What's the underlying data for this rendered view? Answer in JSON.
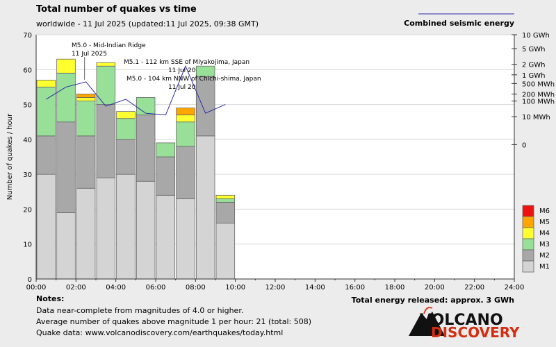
{
  "chart_data": {
    "type": "bar",
    "title": "Total number of quakes vs time",
    "subtitle": "worldwide - 11 Jul 2025 (updated:11 Jul 2025, 09:38 GMT)",
    "ylabel": "Number of quakes / hour",
    "ylim": [
      0,
      70
    ],
    "y_ticks": [
      "0",
      "10",
      "20",
      "30",
      "40",
      "50",
      "60",
      "70"
    ],
    "x_ticks": [
      "00:00",
      "02:00",
      "04:00",
      "06:00",
      "08:00",
      "10:00",
      "12:00",
      "14:00",
      "16:00",
      "18:00",
      "20:00",
      "22:00",
      "24:00"
    ],
    "hours": [
      0,
      1,
      2,
      3,
      4,
      5,
      6,
      7,
      8,
      9
    ],
    "series": [
      {
        "name": "M1",
        "color": "#d4d4d4",
        "values": [
          30,
          19,
          26,
          29,
          30,
          28,
          24,
          23,
          41,
          16
        ]
      },
      {
        "name": "M2",
        "color": "#a8a8a8",
        "values": [
          11,
          26,
          15,
          21,
          10,
          19,
          11,
          15,
          17,
          6
        ]
      },
      {
        "name": "M3",
        "color": "#98e098",
        "values": [
          14,
          14,
          10,
          11,
          6,
          5,
          4,
          7,
          3,
          1
        ]
      },
      {
        "name": "M4",
        "color": "#ffff30",
        "values": [
          2,
          4,
          1,
          1,
          2,
          0,
          0,
          2,
          0,
          1
        ]
      },
      {
        "name": "M5",
        "color": "#ffa500",
        "values": [
          0,
          0,
          1,
          0,
          0,
          0,
          0,
          2,
          0,
          0
        ]
      },
      {
        "name": "M6",
        "color": "#ee1111",
        "values": [
          0,
          0,
          0,
          0,
          0,
          0,
          0,
          0,
          0,
          0
        ]
      }
    ],
    "legend_order": [
      "M6",
      "M5",
      "M4",
      "M3",
      "M2",
      "M1"
    ],
    "energy_line": {
      "name": "Combined seismic energy",
      "color": "#2a2aa8",
      "x_hours": [
        0.5,
        1.5,
        2.5,
        3.5,
        4.5,
        5.5,
        6.5,
        7.5,
        8.5,
        9.5
      ],
      "y_equiv": [
        51.5,
        55,
        56.5,
        49.5,
        51.5,
        47.5,
        47,
        61,
        47.5,
        50
      ]
    },
    "energy_ticks": [
      {
        "label": "10 GWh",
        "y": 70
      },
      {
        "label": "5 GWh",
        "y": 66
      },
      {
        "label": "2 GWh",
        "y": 61.5
      },
      {
        "label": "1 GWh",
        "y": 58.5
      },
      {
        "label": "500 MWh",
        "y": 56
      },
      {
        "label": "200 MWh",
        "y": 53
      },
      {
        "label": "100 MWh",
        "y": 51
      },
      {
        "label": "10 MWh",
        "y": 46.5
      },
      {
        "label": "0",
        "y": 38.5
      }
    ],
    "annotations": [
      {
        "line1": "M5.0 - Mid-Indian Ridge",
        "line2": "11 Jul 2025",
        "hour": 2.5,
        "y": 57.5
      },
      {
        "line1": "M5.1 - 112 km SSE of Miyakojima, Japan",
        "line2": "11 Jul 20",
        "hour": 7.5,
        "y": 53.5
      },
      {
        "line1": "M5.0 - 104 km NNW of Chichi-shima, Japan",
        "line2": "11 Jul 20",
        "hour": 7.5,
        "y": 51.5
      }
    ],
    "grid": true
  },
  "notes": {
    "heading": "Notes:",
    "line1": "Data near-complete from magnitudes of 4.0 or higher.",
    "line2": "Average number of quakes above magnitude 1 per hour: 21 (total: 508)",
    "line3": "Quake data: www.volcanodiscovery.com/earthquakes/today.html"
  },
  "total_energy": "Total energy released: approx. 3 GWh",
  "logo": {
    "word1": "VOLCANO",
    "word2": "DISCOVERY"
  }
}
